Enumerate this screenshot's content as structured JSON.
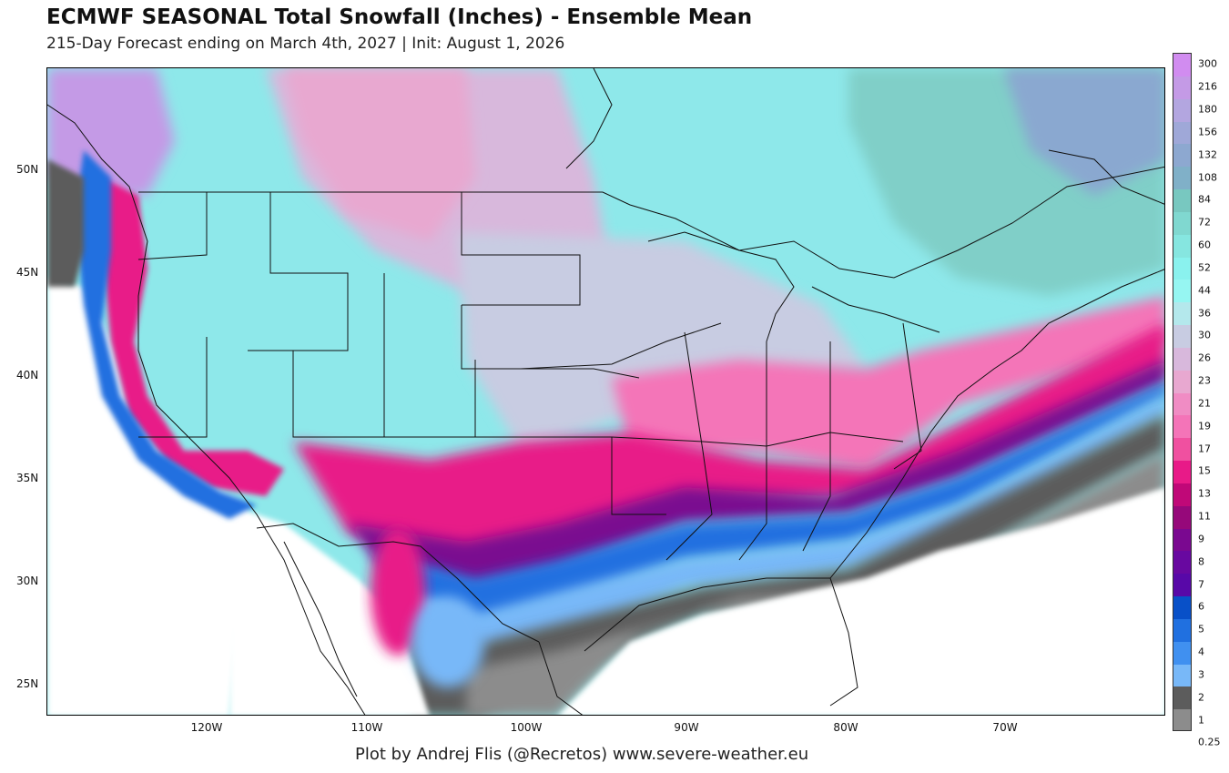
{
  "header": {
    "title": "ECMWF SEASONAL Total Snowfall (Inches) - Ensemble Mean",
    "subtitle": "215-Day Forecast ending on March 4th, 2027 | Init: August 1, 2026"
  },
  "map": {
    "lat_labels": [
      "50N",
      "45N",
      "40N",
      "35N",
      "30N",
      "25N"
    ],
    "lon_labels": [
      "120W",
      "110W",
      "100W",
      "90W",
      "80W",
      "70W"
    ]
  },
  "colorbar": {
    "levels": [
      "300",
      "216",
      "180",
      "156",
      "132",
      "108",
      "84",
      "72",
      "60",
      "52",
      "44",
      "36",
      "30",
      "26",
      "23",
      "21",
      "19",
      "17",
      "15",
      "13",
      "11",
      "9",
      "8",
      "7",
      "6",
      "5",
      "4",
      "3",
      "2",
      "1",
      "0.25"
    ],
    "colors": [
      "#d18cf0",
      "#c49ae6",
      "#b3a6e0",
      "#9fa8d8",
      "#8da8d0",
      "#80b0c8",
      "#78c8c0",
      "#80d8d0",
      "#86e6e0",
      "#8af2ee",
      "#96f6f2",
      "#b4e8ec",
      "#c8cce2",
      "#d8b8dc",
      "#e8a8d0",
      "#f08cc4",
      "#f474b8",
      "#f050a0",
      "#e81a88",
      "#c00878",
      "#96087a",
      "#7a0890",
      "#6808a0",
      "#5808a8",
      "#0850c8",
      "#2070e0",
      "#4090f0",
      "#78b8f8",
      "#5c5c5c",
      "#8c8c8c"
    ]
  },
  "footer": {
    "credit": "Plot by Andrej Flis (@Recretos)    www.severe-weather.eu"
  }
}
